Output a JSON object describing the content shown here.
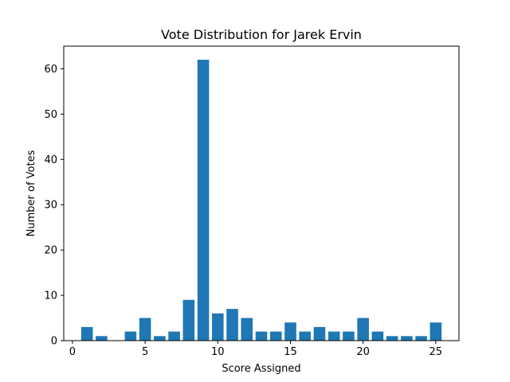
{
  "chart_data": {
    "type": "bar",
    "title": "Vote Distribution for Jarek Ervin",
    "xlabel": "Score Assigned",
    "ylabel": "Number of Votes",
    "x": [
      1,
      2,
      4,
      5,
      6,
      7,
      8,
      9,
      10,
      11,
      12,
      13,
      14,
      15,
      16,
      17,
      18,
      19,
      20,
      21,
      22,
      23,
      24,
      25
    ],
    "values": [
      3,
      1,
      2,
      5,
      1,
      2,
      9,
      62,
      6,
      7,
      5,
      2,
      2,
      4,
      2,
      3,
      2,
      2,
      5,
      2,
      1,
      1,
      1,
      4
    ],
    "xlim": [
      -0.6,
      26.6
    ],
    "ylim": [
      0,
      65
    ],
    "xticks": [
      0,
      5,
      10,
      15,
      20,
      25
    ],
    "yticks": [
      0,
      10,
      20,
      30,
      40,
      50,
      60
    ],
    "xtick_labels": [
      "0",
      "5",
      "10",
      "15",
      "20",
      "25"
    ],
    "ytick_labels": [
      "0",
      "10",
      "20",
      "30",
      "40",
      "50",
      "60"
    ],
    "bar_width": 0.8,
    "bar_color": "#1f77b4",
    "grid": false,
    "legend": "none"
  }
}
